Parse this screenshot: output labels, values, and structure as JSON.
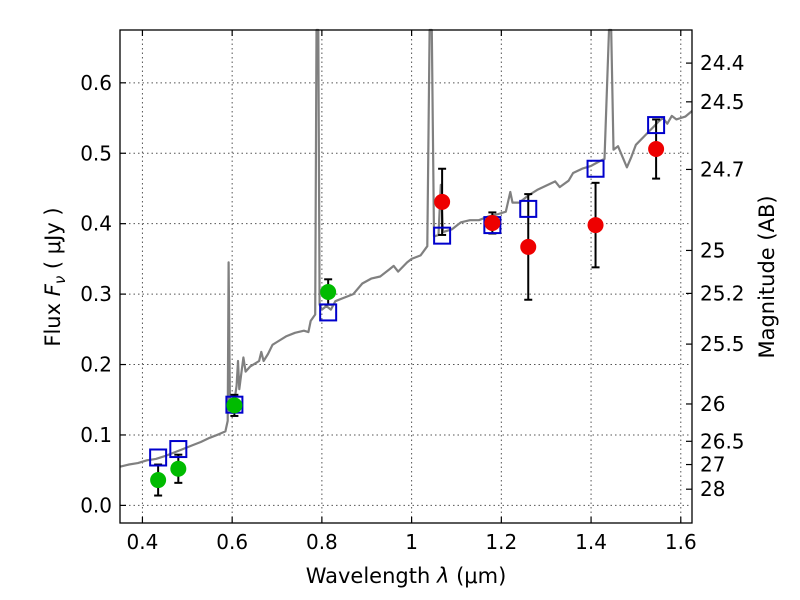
{
  "chart_data": {
    "type": "scatter",
    "xlabel_prefix": "Wavelength",
    "xlabel_symbol": "λ",
    "xlabel_units": "(μm)",
    "ylabel_prefix": "Flux",
    "ylabel_symbol": "F",
    "ylabel_subscript": "ν",
    "ylabel_units": "( μJy )",
    "y2label": "Magnitude (AB)",
    "xlim": [
      0.35,
      1.625
    ],
    "ylim": [
      -0.025,
      0.675
    ],
    "grid": true,
    "x_ticks": [
      0.4,
      0.6,
      0.8,
      1.0,
      1.2,
      1.4,
      1.6
    ],
    "x_tick_labels": [
      "0.4",
      "0.6",
      "0.8",
      "1",
      "1.2",
      "1.4",
      "1.6"
    ],
    "y_ticks": [
      0.0,
      0.1,
      0.2,
      0.3,
      0.4,
      0.5,
      0.6
    ],
    "y_tick_labels": [
      "0.0",
      "0.1",
      "0.2",
      "0.3",
      "0.4",
      "0.5",
      "0.6"
    ],
    "y2_ticks": [
      {
        "label": "24.4",
        "flux": 0.628
      },
      {
        "label": "24.5",
        "flux": 0.573
      },
      {
        "label": "24.7",
        "flux": 0.477
      },
      {
        "label": "25",
        "flux": 0.362
      },
      {
        "label": "25.2",
        "flux": 0.301
      },
      {
        "label": "25.5",
        "flux": 0.229
      },
      {
        "label": "26",
        "flux": 0.144
      },
      {
        "label": "26.5",
        "flux": 0.091
      },
      {
        "label": "27",
        "flux": 0.058
      },
      {
        "label": "28",
        "flux": 0.023
      }
    ],
    "colors": {
      "model": "#808080",
      "model_points": "#0000cc",
      "optical": "#00bb00",
      "nir": "#ee0000",
      "errorbar": "#000000",
      "grid": "#555555"
    },
    "series": [
      {
        "name": "model_spectrum",
        "style": "line",
        "points": [
          [
            0.35,
            0.055
          ],
          [
            0.37,
            0.058
          ],
          [
            0.39,
            0.06
          ],
          [
            0.41,
            0.064
          ],
          [
            0.43,
            0.066
          ],
          [
            0.45,
            0.07
          ],
          [
            0.47,
            0.075
          ],
          [
            0.49,
            0.08
          ],
          [
            0.51,
            0.085
          ],
          [
            0.53,
            0.09
          ],
          [
            0.55,
            0.096
          ],
          [
            0.57,
            0.101
          ],
          [
            0.585,
            0.105
          ],
          [
            0.59,
            0.12
          ],
          [
            0.592,
            0.345
          ],
          [
            0.595,
            0.15
          ],
          [
            0.6,
            0.14
          ],
          [
            0.605,
            0.148
          ],
          [
            0.61,
            0.17
          ],
          [
            0.613,
            0.205
          ],
          [
            0.616,
            0.165
          ],
          [
            0.62,
            0.185
          ],
          [
            0.625,
            0.21
          ],
          [
            0.63,
            0.19
          ],
          [
            0.64,
            0.197
          ],
          [
            0.66,
            0.205
          ],
          [
            0.665,
            0.218
          ],
          [
            0.67,
            0.205
          ],
          [
            0.68,
            0.215
          ],
          [
            0.69,
            0.228
          ],
          [
            0.7,
            0.232
          ],
          [
            0.72,
            0.24
          ],
          [
            0.74,
            0.245
          ],
          [
            0.76,
            0.248
          ],
          [
            0.77,
            0.246
          ],
          [
            0.775,
            0.262
          ],
          [
            0.785,
            0.271
          ],
          [
            0.788,
            0.675
          ],
          [
            0.792,
            0.675
          ],
          [
            0.795,
            0.285
          ],
          [
            0.8,
            0.278
          ],
          [
            0.81,
            0.283
          ],
          [
            0.82,
            0.278
          ],
          [
            0.83,
            0.29
          ],
          [
            0.85,
            0.295
          ],
          [
            0.87,
            0.3
          ],
          [
            0.89,
            0.315
          ],
          [
            0.91,
            0.322
          ],
          [
            0.93,
            0.325
          ],
          [
            0.95,
            0.335
          ],
          [
            0.96,
            0.34
          ],
          [
            0.97,
            0.332
          ],
          [
            0.99,
            0.345
          ],
          [
            1.0,
            0.35
          ],
          [
            1.02,
            0.355
          ],
          [
            1.035,
            0.368
          ],
          [
            1.04,
            0.675
          ],
          [
            1.045,
            0.675
          ],
          [
            1.05,
            0.382
          ],
          [
            1.06,
            0.384
          ],
          [
            1.065,
            0.455
          ],
          [
            1.07,
            0.388
          ],
          [
            1.09,
            0.392
          ],
          [
            1.11,
            0.402
          ],
          [
            1.13,
            0.405
          ],
          [
            1.15,
            0.405
          ],
          [
            1.17,
            0.41
          ],
          [
            1.19,
            0.413
          ],
          [
            1.21,
            0.417
          ],
          [
            1.22,
            0.445
          ],
          [
            1.225,
            0.43
          ],
          [
            1.24,
            0.43
          ],
          [
            1.26,
            0.44
          ],
          [
            1.28,
            0.448
          ],
          [
            1.3,
            0.454
          ],
          [
            1.32,
            0.46
          ],
          [
            1.33,
            0.452
          ],
          [
            1.35,
            0.461
          ],
          [
            1.36,
            0.472
          ],
          [
            1.38,
            0.478
          ],
          [
            1.4,
            0.482
          ],
          [
            1.42,
            0.489
          ],
          [
            1.43,
            0.492
          ],
          [
            1.44,
            0.675
          ],
          [
            1.445,
            0.675
          ],
          [
            1.45,
            0.505
          ],
          [
            1.46,
            0.51
          ],
          [
            1.48,
            0.48
          ],
          [
            1.49,
            0.495
          ],
          [
            1.5,
            0.512
          ],
          [
            1.52,
            0.525
          ],
          [
            1.54,
            0.538
          ],
          [
            1.55,
            0.545
          ],
          [
            1.56,
            0.55
          ],
          [
            1.57,
            0.542
          ],
          [
            1.58,
            0.553
          ],
          [
            1.59,
            0.548
          ],
          [
            1.6,
            0.55
          ],
          [
            1.61,
            0.552
          ],
          [
            1.625,
            0.56
          ]
        ]
      },
      {
        "name": "model_photometry",
        "style": "open_square",
        "x": [
          0.435,
          0.48,
          0.605,
          0.814,
          1.068,
          1.18,
          1.26,
          1.41,
          1.545
        ],
        "y": [
          0.068,
          0.08,
          0.143,
          0.274,
          0.383,
          0.398,
          0.421,
          0.478,
          0.54
        ]
      },
      {
        "name": "optical_photometry",
        "style": "filled_circle",
        "x": [
          0.435,
          0.48,
          0.605,
          0.814
        ],
        "y": [
          0.036,
          0.052,
          0.142,
          0.303
        ],
        "yerr": [
          0.022,
          0.02,
          0.015,
          0.018
        ]
      },
      {
        "name": "nir_photometry",
        "style": "filled_circle",
        "x": [
          1.068,
          1.18,
          1.26,
          1.41,
          1.545
        ],
        "y": [
          0.431,
          0.401,
          0.367,
          0.398,
          0.506
        ],
        "yerr": [
          0.047,
          0.015,
          0.075,
          0.06,
          0.042
        ]
      }
    ]
  }
}
